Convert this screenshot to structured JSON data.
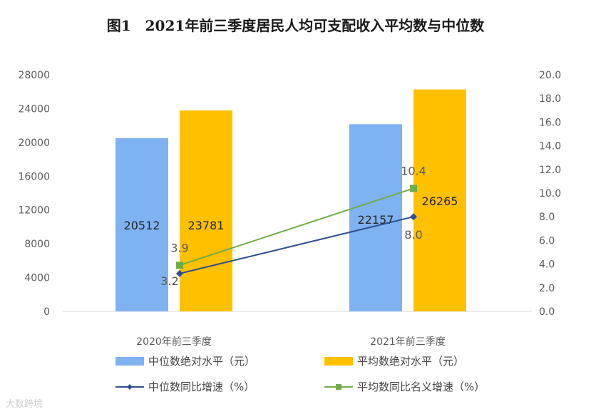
{
  "title": "图1　2021年前三季度居民人均可支配收入平均数与中位数",
  "watermark": "大数跨境",
  "chart_data": {
    "type": "bar",
    "categories": [
      "2020年前三季度",
      "2021年前三季度"
    ],
    "series": [
      {
        "name": "中位数绝对水平（元）",
        "kind": "bar",
        "axis": "left",
        "values": [
          20512,
          22157
        ],
        "labels": [
          "20512",
          "22157"
        ]
      },
      {
        "name": "平均数绝对水平（元）",
        "kind": "bar",
        "axis": "left",
        "values": [
          23781,
          26265
        ],
        "labels": [
          "23781",
          "26265"
        ]
      },
      {
        "name": "中位数同比增速（%）",
        "kind": "line",
        "axis": "right",
        "values": [
          3.2,
          8.0
        ],
        "labels": [
          "3.2",
          "8.0"
        ]
      },
      {
        "name": "平均数同比名义增速（%）",
        "kind": "line",
        "axis": "right",
        "values": [
          3.9,
          10.4
        ],
        "labels": [
          "3.9",
          "10.4"
        ]
      }
    ],
    "left_axis": {
      "min": 0,
      "max": 28000,
      "ticks": [
        "0",
        "4000",
        "8000",
        "12000",
        "16000",
        "20000",
        "24000",
        "28000"
      ]
    },
    "right_axis": {
      "min": 0,
      "max": 20,
      "ticks": [
        "0.0",
        "2.0",
        "4.0",
        "6.0",
        "8.0",
        "10.0",
        "12.0",
        "14.0",
        "16.0",
        "18.0",
        "20.0"
      ]
    },
    "legend_position": "bottom"
  },
  "colors": {
    "median_bar": "#7fb2f0",
    "mean_bar": "#ffc000",
    "median_line": "#2f4f8f",
    "mean_line": "#70ad47"
  },
  "legend": [
    {
      "label": "中位数绝对水平（元）"
    },
    {
      "label": "平均数绝对水平（元）"
    },
    {
      "label": "中位数同比增速（%）"
    },
    {
      "label": "平均数同比名义增速（%）"
    }
  ]
}
